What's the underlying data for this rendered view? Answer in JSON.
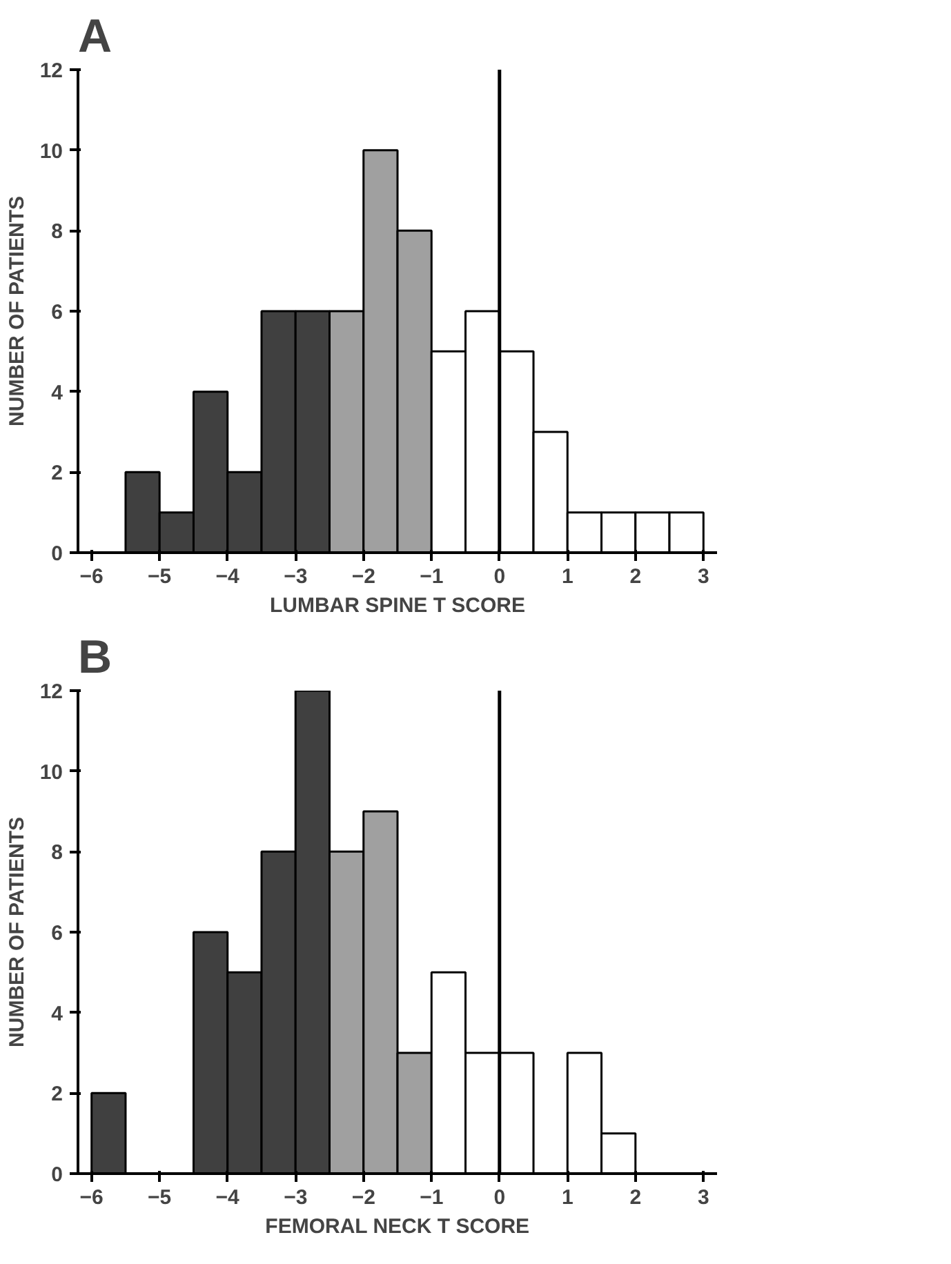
{
  "chart_data": [
    {
      "type": "histogram",
      "title": "A",
      "xlabel": "LUMBAR SPINE T SCORE",
      "ylabel": "NUMBER OF PATIENTS",
      "bins": [
        -5.5,
        -5,
        -4.5,
        -4,
        -3.5,
        -3,
        -2.5,
        -2,
        -1.5,
        -1,
        -0.5,
        0,
        0.5,
        1,
        1.5,
        2,
        2.5,
        3
      ],
      "values": [
        2,
        1,
        4,
        2,
        6,
        6,
        6,
        10,
        8,
        5,
        6,
        5,
        3,
        1,
        1,
        1,
        1
      ],
      "colors": [
        "#404040",
        "#404040",
        "#404040",
        "#404040",
        "#404040",
        "#404040",
        "#a0a0a0",
        "#a0a0a0",
        "#a0a0a0",
        "#ffffff",
        "#ffffff",
        "#ffffff",
        "#ffffff",
        "#ffffff",
        "#ffffff",
        "#ffffff",
        "#ffffff"
      ],
      "xlim": [
        -6.2,
        3.2
      ],
      "xticks": [
        -6,
        -5,
        -4,
        -3,
        -2,
        -1,
        0,
        1,
        2,
        3
      ],
      "ylim": [
        0,
        12
      ],
      "yticks": [
        0,
        2,
        4,
        6,
        8,
        10,
        12
      ],
      "ref_lines": [
        {
          "axis": "x",
          "value": 0,
          "color": "#000000"
        }
      ]
    },
    {
      "type": "histogram",
      "title": "B",
      "xlabel": "FEMORAL NECK T SCORE",
      "ylabel": "NUMBER OF PATIENTS",
      "bins": [
        -6,
        -5.5,
        -5,
        -4.5,
        -4,
        -3.5,
        -3,
        -2.5,
        -2,
        -1.5,
        -1,
        -0.5,
        0,
        0.5,
        1,
        1.5,
        2
      ],
      "values": [
        2,
        0,
        0,
        6,
        5,
        8,
        12,
        8,
        9,
        3,
        5,
        3,
        3,
        0,
        3,
        1
      ],
      "colors": [
        "#404040",
        "#000000",
        "#000000",
        "#404040",
        "#404040",
        "#404040",
        "#404040",
        "#a0a0a0",
        "#a0a0a0",
        "#a0a0a0",
        "#ffffff",
        "#ffffff",
        "#ffffff",
        "#000000",
        "#ffffff",
        "#ffffff"
      ],
      "xlim": [
        -6.2,
        3.2
      ],
      "xticks": [
        -6,
        -5,
        -4,
        -3,
        -2,
        -1,
        0,
        1,
        2,
        3
      ],
      "ylim": [
        0,
        12
      ],
      "yticks": [
        0,
        2,
        4,
        6,
        8,
        10,
        12
      ],
      "ref_lines": [
        {
          "axis": "x",
          "value": 0,
          "color": "#000000"
        }
      ]
    }
  ]
}
